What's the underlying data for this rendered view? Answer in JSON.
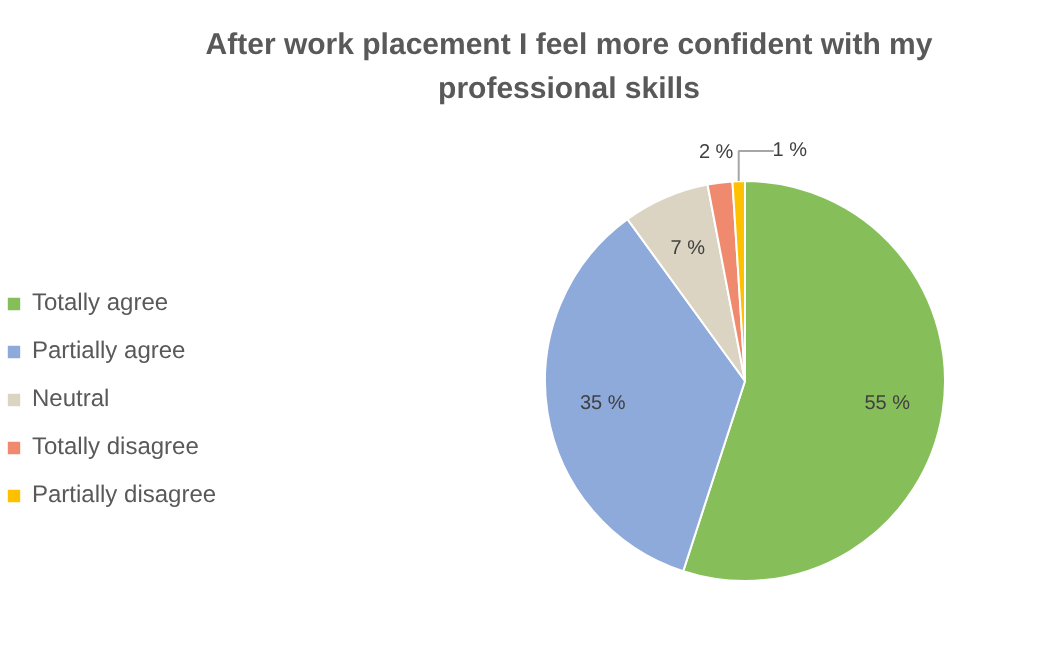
{
  "chart_data": {
    "type": "pie",
    "title": "After work placement I feel more confident with my\nprofessional skills",
    "categories": [
      "Totally agree",
      "Partially agree",
      "Neutral",
      "Totally disagree",
      "Partially disagree"
    ],
    "values": [
      55,
      35,
      7,
      2,
      1
    ],
    "colors": [
      "#86bf5a",
      "#8eaadb",
      "#dcd4c2",
      "#f08a6e",
      "#ffc000"
    ],
    "value_labels": [
      "55 %",
      "35 %",
      "7 %",
      "2 %",
      "1 %"
    ],
    "legend": "left"
  }
}
